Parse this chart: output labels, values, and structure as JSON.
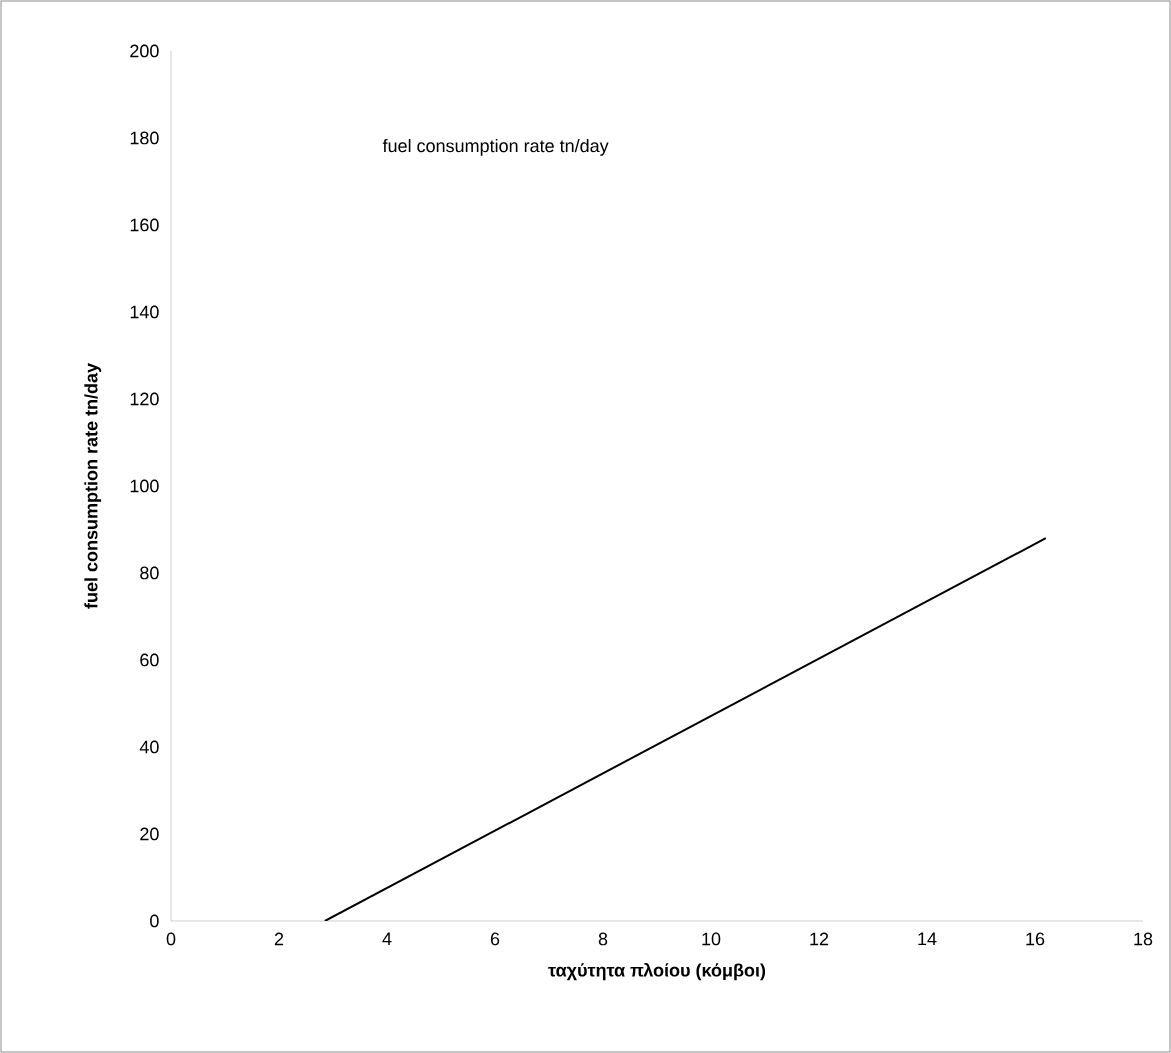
{
  "chart_data": {
    "type": "line",
    "title": "fuel consumption rate tn/day",
    "xlabel": "ταχύτητα πλοίου (κόμβοι)",
    "ylabel": "fuel consumption rate tn/day",
    "x": [
      2.85,
      16.2
    ],
    "series": [
      {
        "color": "#000000",
        "values": [
          0,
          88
        ]
      }
    ],
    "xlim": [
      0,
      18
    ],
    "ylim": [
      0,
      200
    ],
    "xticks": [
      0,
      2,
      4,
      6,
      8,
      10,
      12,
      14,
      16,
      18
    ],
    "yticks": [
      0,
      20,
      40,
      60,
      80,
      100,
      120,
      140,
      160,
      180,
      200
    ],
    "grid": false,
    "marker": "none",
    "line_style": "solid"
  }
}
